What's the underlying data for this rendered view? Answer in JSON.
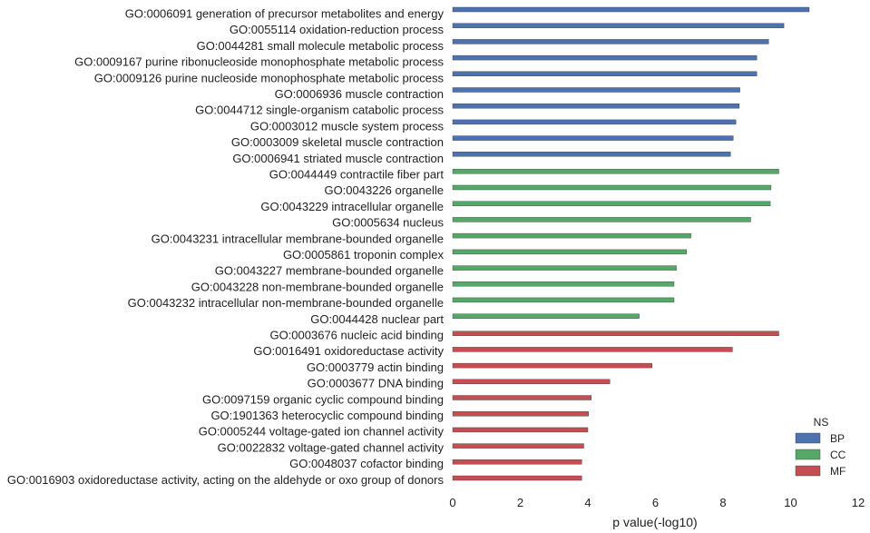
{
  "chart_data": {
    "type": "bar",
    "orientation": "horizontal",
    "xlabel": "p value(-log10)",
    "xlim": [
      0,
      12
    ],
    "xticks": [
      "0",
      "2",
      "4",
      "6",
      "8",
      "10",
      "12"
    ],
    "grid": false,
    "legend": {
      "title": "NS",
      "placement": "bottom-right",
      "entries": [
        {
          "name": "BP",
          "color": "#4c72b0"
        },
        {
          "name": "CC",
          "color": "#55a868"
        },
        {
          "name": "MF",
          "color": "#c44e52"
        }
      ]
    },
    "categories": [
      "GO:0006091 generation of precursor metabolites and energy",
      "GO:0055114 oxidation-reduction process",
      "GO:0044281 small molecule metabolic process",
      "GO:0009167 purine ribonucleoside monophosphate metabolic process",
      "GO:0009126 purine nucleoside monophosphate metabolic process",
      "GO:0006936 muscle contraction",
      "GO:0044712 single-organism catabolic process",
      "GO:0003012 muscle system process",
      "GO:0003009 skeletal muscle contraction",
      "GO:0006941 striated muscle contraction",
      "GO:0044449 contractile fiber part",
      "GO:0043226 organelle",
      "GO:0043229 intracellular organelle",
      "GO:0005634 nucleus",
      "GO:0043231 intracellular membrane-bounded organelle",
      "GO:0005861 troponin complex",
      "GO:0043227 membrane-bounded organelle",
      "GO:0043228 non-membrane-bounded organelle",
      "GO:0043232 intracellular non-membrane-bounded organelle",
      "GO:0044428 nuclear part",
      "GO:0003676 nucleic acid binding",
      "GO:0016491 oxidoreductase activity",
      "GO:0003779 actin binding",
      "GO:0003677 DNA binding",
      "GO:0097159 organic cyclic compound binding",
      "GO:1901363 heterocyclic compound binding",
      "GO:0005244 voltage-gated ion channel activity",
      "GO:0022832 voltage-gated channel activity",
      "GO:0048037 cofactor binding",
      "GO:0016903 oxidoreductase activity, acting on the aldehyde or oxo group of donors"
    ],
    "values": [
      10.55,
      9.8,
      9.35,
      9.0,
      9.0,
      8.5,
      8.48,
      8.38,
      8.3,
      8.22,
      9.65,
      9.42,
      9.4,
      8.82,
      7.05,
      6.92,
      6.62,
      6.55,
      6.55,
      5.52,
      9.65,
      8.28,
      5.9,
      4.65,
      4.1,
      4.02,
      4.0,
      3.88,
      3.82,
      3.82
    ],
    "groups": [
      "BP",
      "BP",
      "BP",
      "BP",
      "BP",
      "BP",
      "BP",
      "BP",
      "BP",
      "BP",
      "CC",
      "CC",
      "CC",
      "CC",
      "CC",
      "CC",
      "CC",
      "CC",
      "CC",
      "CC",
      "MF",
      "MF",
      "MF",
      "MF",
      "MF",
      "MF",
      "MF",
      "MF",
      "MF",
      "MF"
    ]
  }
}
